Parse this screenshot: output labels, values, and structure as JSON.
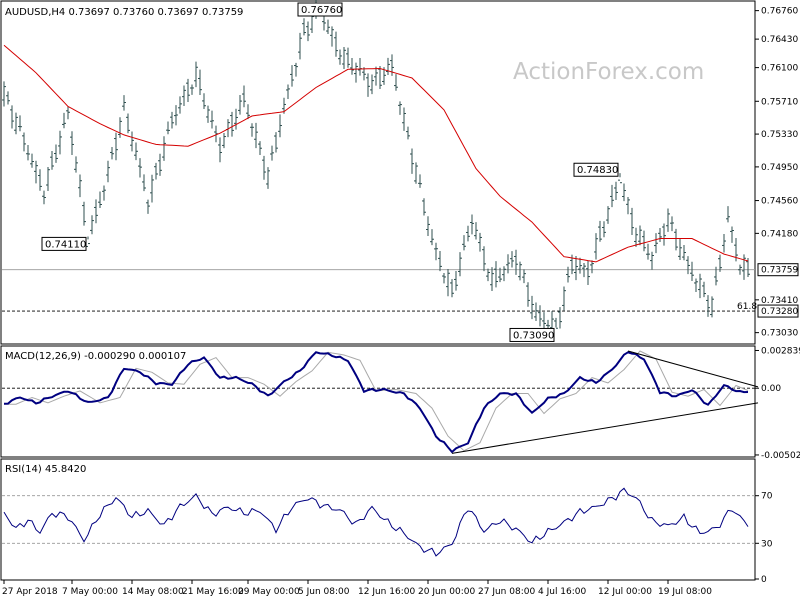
{
  "chart_data": [
    {
      "id": "price",
      "type": "ohlc",
      "header": "AUDUSD,H4  0.73697 0.73760 0.73697 0.73759",
      "watermark": "ActionForex.com",
      "ylim": [
        0.7291,
        0.7686
      ],
      "y_ticks": [
        {
          "value": 0.7676,
          "label": "0.76760"
        },
        {
          "value": 0.7643,
          "label": "0.76430"
        },
        {
          "value": 0.761,
          "label": "0.76100"
        },
        {
          "value": 0.7571,
          "label": "0.75710"
        },
        {
          "value": 0.7533,
          "label": "0.75330"
        },
        {
          "value": 0.7495,
          "label": "0.74950"
        },
        {
          "value": 0.7456,
          "label": "0.74560"
        },
        {
          "value": 0.7418,
          "label": "0.74180"
        },
        {
          "value": 0.7341,
          "label": "0.73410"
        },
        {
          "value": 0.7303,
          "label": "0.73030"
        }
      ],
      "last_price": {
        "value": 0.73759,
        "label": "0.73759"
      },
      "fib_level": {
        "value": 0.7328,
        "label": "0.73280",
        "note": "61.8"
      },
      "callouts": [
        {
          "label": "0.76760",
          "value": 0.7676,
          "bar": 79
        },
        {
          "label": "0.74110",
          "value": 0.7411,
          "bar": 21
        },
        {
          "label": "0.74830",
          "value": 0.7483,
          "bar": 154
        },
        {
          "label": "0.73090",
          "value": 0.7309,
          "bar": 138
        }
      ],
      "ma_anchors": [
        [
          0,
          0.7636
        ],
        [
          8,
          0.7604
        ],
        [
          16,
          0.7565
        ],
        [
          24,
          0.7545
        ],
        [
          30,
          0.7532
        ],
        [
          38,
          0.7521
        ],
        [
          46,
          0.7519
        ],
        [
          54,
          0.7534
        ],
        [
          62,
          0.7554
        ],
        [
          70,
          0.7559
        ],
        [
          78,
          0.7587
        ],
        [
          86,
          0.7608
        ],
        [
          94,
          0.7609
        ],
        [
          102,
          0.7598
        ],
        [
          110,
          0.7561
        ],
        [
          118,
          0.7493
        ],
        [
          124,
          0.7461
        ],
        [
          132,
          0.7431
        ],
        [
          140,
          0.7391
        ],
        [
          148,
          0.7385
        ],
        [
          156,
          0.7402
        ],
        [
          164,
          0.7412
        ],
        [
          172,
          0.7412
        ],
        [
          180,
          0.7394
        ],
        [
          186,
          0.7386
        ]
      ],
      "price_anchors": [
        [
          0,
          0.7578
        ],
        [
          5,
          0.7525
        ],
        [
          10,
          0.7468
        ],
        [
          16,
          0.7555
        ],
        [
          21,
          0.7411
        ],
        [
          25,
          0.7472
        ],
        [
          30,
          0.756
        ],
        [
          36,
          0.7457
        ],
        [
          42,
          0.7549
        ],
        [
          48,
          0.7599
        ],
        [
          54,
          0.7521
        ],
        [
          60,
          0.757
        ],
        [
          66,
          0.7487
        ],
        [
          70,
          0.7565
        ],
        [
          75,
          0.7649
        ],
        [
          79,
          0.7676
        ],
        [
          85,
          0.762
        ],
        [
          92,
          0.7591
        ],
        [
          97,
          0.7613
        ],
        [
          102,
          0.7508
        ],
        [
          107,
          0.7408
        ],
        [
          112,
          0.7352
        ],
        [
          117,
          0.7432
        ],
        [
          122,
          0.7361
        ],
        [
          128,
          0.7392
        ],
        [
          133,
          0.732
        ],
        [
          138,
          0.7309
        ],
        [
          142,
          0.7384
        ],
        [
          146,
          0.7372
        ],
        [
          150,
          0.7426
        ],
        [
          154,
          0.7483
        ],
        [
          158,
          0.7419
        ],
        [
          162,
          0.7389
        ],
        [
          166,
          0.7435
        ],
        [
          170,
          0.7392
        ],
        [
          174,
          0.7356
        ],
        [
          177,
          0.7332
        ],
        [
          181,
          0.7435
        ],
        [
          184,
          0.7384
        ],
        [
          186,
          0.7376
        ]
      ]
    },
    {
      "id": "macd",
      "type": "line",
      "header": "MACD(12,26,9) -0.000290 0.000107",
      "ylim": [
        -0.0051,
        0.0031
      ],
      "y_ticks": [
        {
          "value": 0.002839,
          "label": "0.002839"
        },
        {
          "value": 0.0,
          "label": "0.00"
        },
        {
          "value": -0.005021,
          "label": "-0.005021"
        }
      ],
      "macd_anchors": [
        [
          0,
          -0.0012
        ],
        [
          4,
          -0.0007
        ],
        [
          8,
          -0.0011
        ],
        [
          12,
          -0.0006
        ],
        [
          16,
          -0.0002
        ],
        [
          21,
          -0.0011
        ],
        [
          26,
          -0.0007
        ],
        [
          30,
          0.0015
        ],
        [
          34,
          0.0012
        ],
        [
          38,
          0.0004
        ],
        [
          42,
          0.0003
        ],
        [
          46,
          0.0018
        ],
        [
          50,
          0.0023
        ],
        [
          54,
          0.0008
        ],
        [
          58,
          0.0008
        ],
        [
          62,
          0.0003
        ],
        [
          66,
          -0.0006
        ],
        [
          70,
          0.0005
        ],
        [
          74,
          0.0013
        ],
        [
          78,
          0.0027
        ],
        [
          82,
          0.0025
        ],
        [
          86,
          0.0021
        ],
        [
          90,
          -0.0002
        ],
        [
          95,
          -0.0001
        ],
        [
          100,
          -0.0004
        ],
        [
          104,
          -0.0015
        ],
        [
          108,
          -0.0036
        ],
        [
          112,
          -0.0047
        ],
        [
          116,
          -0.0041
        ],
        [
          120,
          -0.0015
        ],
        [
          124,
          -0.0004
        ],
        [
          128,
          -0.0004
        ],
        [
          132,
          -0.0019
        ],
        [
          136,
          -0.0008
        ],
        [
          140,
          -0.0004
        ],
        [
          144,
          0.0008
        ],
        [
          148,
          0.0004
        ],
        [
          152,
          0.0014
        ],
        [
          156,
          0.0028
        ],
        [
          160,
          0.0022
        ],
        [
          164,
          -0.0003
        ],
        [
          168,
          -0.0006
        ],
        [
          172,
          -0.0001
        ],
        [
          176,
          -0.0013
        ],
        [
          180,
          0.0002
        ],
        [
          184,
          -0.0003
        ],
        [
          186,
          -0.0002
        ]
      ],
      "trendlines": [
        {
          "from": [
            156,
            0.0028
          ],
          "to": [
            186,
            0.0001
          ]
        },
        {
          "from": [
            112,
            -0.0049
          ],
          "to": [
            186,
            -0.0011
          ]
        }
      ]
    },
    {
      "id": "rsi",
      "type": "line",
      "header": "RSI(14) 45.8420",
      "ylim": [
        0,
        100
      ],
      "y_ticks": [
        {
          "value": 70,
          "label": "70"
        },
        {
          "value": 30,
          "label": "30"
        },
        {
          "value": 0,
          "label": "0"
        }
      ],
      "rsi_anchors": [
        [
          0,
          55
        ],
        [
          3,
          42
        ],
        [
          6,
          50
        ],
        [
          9,
          40
        ],
        [
          12,
          55
        ],
        [
          16,
          52
        ],
        [
          20,
          33
        ],
        [
          24,
          55
        ],
        [
          28,
          68
        ],
        [
          32,
          52
        ],
        [
          36,
          58
        ],
        [
          40,
          45
        ],
        [
          44,
          60
        ],
        [
          48,
          70
        ],
        [
          52,
          55
        ],
        [
          56,
          60
        ],
        [
          60,
          55
        ],
        [
          64,
          58
        ],
        [
          68,
          42
        ],
        [
          72,
          60
        ],
        [
          76,
          68
        ],
        [
          80,
          62
        ],
        [
          84,
          58
        ],
        [
          88,
          45
        ],
        [
          92,
          60
        ],
        [
          96,
          48
        ],
        [
          100,
          38
        ],
        [
          104,
          26
        ],
        [
          108,
          22
        ],
        [
          112,
          30
        ],
        [
          116,
          60
        ],
        [
          120,
          40
        ],
        [
          124,
          50
        ],
        [
          128,
          42
        ],
        [
          132,
          30
        ],
        [
          136,
          40
        ],
        [
          140,
          48
        ],
        [
          144,
          56
        ],
        [
          148,
          60
        ],
        [
          152,
          68
        ],
        [
          155,
          75
        ],
        [
          158,
          68
        ],
        [
          162,
          48
        ],
        [
          166,
          45
        ],
        [
          170,
          52
        ],
        [
          174,
          38
        ],
        [
          178,
          42
        ],
        [
          182,
          60
        ],
        [
          186,
          45
        ]
      ],
      "levels": [
        70,
        30
      ]
    }
  ],
  "x_labels": [
    {
      "bar": 0,
      "label": "27 Apr 2018"
    },
    {
      "bar": 17,
      "label": "7 May 00:00"
    },
    {
      "bar": 32,
      "label": "14 May 08:00"
    },
    {
      "bar": 47,
      "label": "21 May 16:00"
    },
    {
      "bar": 61,
      "label": "29 May 00:00"
    },
    {
      "bar": 76,
      "label": "5 Jun 08:00"
    },
    {
      "bar": 91,
      "label": "12 Jun 16:00"
    },
    {
      "bar": 106,
      "label": "20 Jun 00:00"
    },
    {
      "bar": 121,
      "label": "27 Jun 08:00"
    },
    {
      "bar": 136,
      "label": "4 Jul 16:00"
    },
    {
      "bar": 151,
      "label": "12 Jul 00:00"
    },
    {
      "bar": 166,
      "label": "19 Jul 08:00"
    }
  ],
  "colors": {
    "candles": "#2f4f4f",
    "ma": "#d40000",
    "macd": "#000080",
    "signal": "#a9a9a9",
    "trendline": "#000000",
    "grid_level": "#808080",
    "watermark": "#c8c8c8"
  }
}
